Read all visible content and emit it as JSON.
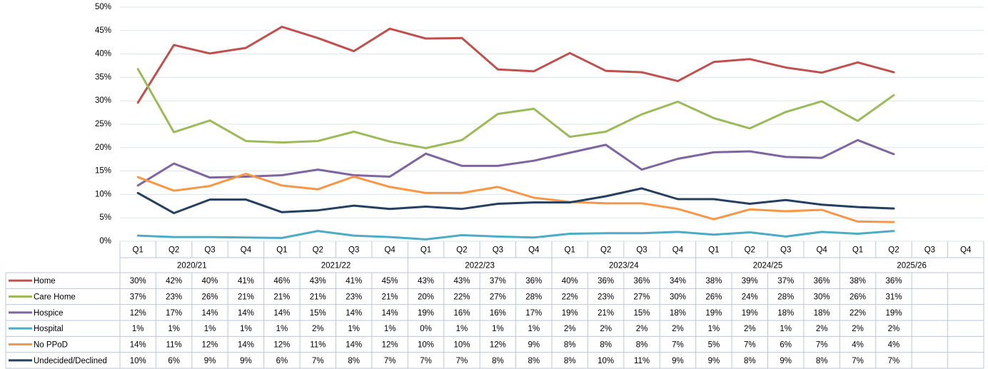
{
  "chart_data": {
    "type": "line",
    "categories": [
      "Q1",
      "Q2",
      "Q3",
      "Q4",
      "Q1",
      "Q2",
      "Q3",
      "Q4",
      "Q1",
      "Q2",
      "Q3",
      "Q4",
      "Q1",
      "Q2",
      "Q3",
      "Q4",
      "Q1",
      "Q2",
      "Q3",
      "Q4",
      "Q1",
      "Q2",
      "Q3",
      "Q4"
    ],
    "category_groups": [
      "2020/21",
      "2021/22",
      "2022/23",
      "2023/24",
      "2024/25",
      "2025/26"
    ],
    "ylim": [
      0,
      50
    ],
    "yticks": [
      {
        "value": 0,
        "label": "0%"
      },
      {
        "value": 5,
        "label": "5%"
      },
      {
        "value": 10,
        "label": "10%"
      },
      {
        "value": 15,
        "label": "15%"
      },
      {
        "value": 20,
        "label": "20%"
      },
      {
        "value": 25,
        "label": "25%"
      },
      {
        "value": 30,
        "label": "30%"
      },
      {
        "value": 35,
        "label": "35%"
      },
      {
        "value": 40,
        "label": "40%"
      },
      {
        "value": 45,
        "label": "45%"
      },
      {
        "value": 50,
        "label": "50%"
      }
    ],
    "grid": true,
    "series": [
      {
        "name": "Home",
        "color": "#c0504d",
        "values": [
          29.6,
          41.9,
          40.1,
          41.3,
          45.8,
          43.4,
          40.6,
          45.4,
          43.3,
          43.4,
          36.7,
          36.3,
          40.2,
          36.4,
          36.1,
          34.2,
          38.3,
          38.9,
          37.1,
          36.0,
          38.2,
          36.1,
          null,
          null
        ],
        "value_labels": [
          "30%",
          "42%",
          "40%",
          "41%",
          "46%",
          "43%",
          "41%",
          "45%",
          "43%",
          "43%",
          "37%",
          "36%",
          "40%",
          "36%",
          "36%",
          "34%",
          "38%",
          "39%",
          "37%",
          "36%",
          "38%",
          "36%",
          null,
          null
        ]
      },
      {
        "name": "Care Home",
        "color": "#9bbb59",
        "values": [
          36.8,
          23.3,
          25.8,
          21.4,
          21.1,
          21.4,
          23.4,
          21.3,
          19.9,
          21.6,
          27.2,
          28.3,
          22.3,
          23.4,
          27.1,
          29.8,
          26.3,
          24.1,
          27.6,
          29.9,
          25.7,
          31.2,
          null,
          null
        ],
        "value_labels": [
          "37%",
          "23%",
          "26%",
          "21%",
          "21%",
          "21%",
          "23%",
          "21%",
          "20%",
          "22%",
          "27%",
          "28%",
          "22%",
          "23%",
          "27%",
          "30%",
          "26%",
          "24%",
          "28%",
          "30%",
          "26%",
          "31%",
          null,
          null
        ]
      },
      {
        "name": "Hospice",
        "color": "#8064a2",
        "values": [
          11.9,
          16.6,
          13.6,
          13.8,
          14.1,
          15.3,
          14.1,
          13.8,
          18.7,
          16.1,
          16.1,
          17.2,
          18.9,
          20.6,
          15.3,
          17.6,
          19.0,
          19.2,
          18.0,
          17.8,
          21.6,
          18.6,
          null,
          null
        ],
        "value_labels": [
          "12%",
          "17%",
          "14%",
          "14%",
          "14%",
          "15%",
          "14%",
          "14%",
          "19%",
          "16%",
          "16%",
          "17%",
          "19%",
          "21%",
          "15%",
          "18%",
          "19%",
          "19%",
          "18%",
          "18%",
          "22%",
          "19%",
          null,
          null
        ]
      },
      {
        "name": "Hospital",
        "color": "#4bacc6",
        "values": [
          1.2,
          0.9,
          0.9,
          0.8,
          0.7,
          2.2,
          1.2,
          0.9,
          0.4,
          1.3,
          1.0,
          0.8,
          1.6,
          1.7,
          1.7,
          2.0,
          1.4,
          1.9,
          1.0,
          2.0,
          1.6,
          2.2,
          null,
          null
        ],
        "value_labels": [
          "1%",
          "1%",
          "1%",
          "1%",
          "1%",
          "2%",
          "1%",
          "1%",
          "0%",
          "1%",
          "1%",
          "1%",
          "2%",
          "2%",
          "2%",
          "2%",
          "1%",
          "2%",
          "1%",
          "2%",
          "2%",
          "2%",
          null,
          null
        ]
      },
      {
        "name": "No PPoD",
        "color": "#f79646",
        "values": [
          13.7,
          10.8,
          11.8,
          14.4,
          11.9,
          11.1,
          13.8,
          11.6,
          10.3,
          10.3,
          11.6,
          9.3,
          8.4,
          8.1,
          8.1,
          6.9,
          4.7,
          6.8,
          6.4,
          6.7,
          4.2,
          4.1,
          null,
          null
        ],
        "value_labels": [
          "14%",
          "11%",
          "12%",
          "14%",
          "12%",
          "11%",
          "14%",
          "12%",
          "10%",
          "10%",
          "12%",
          "9%",
          "8%",
          "8%",
          "8%",
          "7%",
          "5%",
          "7%",
          "6%",
          "7%",
          "4%",
          "4%",
          null,
          null
        ]
      },
      {
        "name": "Undecided/Declined",
        "color": "#243f60",
        "values": [
          10.3,
          6.0,
          8.9,
          8.9,
          6.2,
          6.6,
          7.6,
          6.9,
          7.4,
          6.9,
          8.0,
          8.3,
          8.3,
          9.6,
          11.3,
          9.0,
          9.0,
          8.0,
          8.8,
          7.8,
          7.3,
          7.0,
          null,
          null
        ],
        "value_labels": [
          "10%",
          "6%",
          "9%",
          "9%",
          "6%",
          "7%",
          "8%",
          "7%",
          "7%",
          "7%",
          "8%",
          "8%",
          "8%",
          "10%",
          "11%",
          "9%",
          "9%",
          "8%",
          "9%",
          "8%",
          "7%",
          "7%",
          null,
          null
        ]
      }
    ]
  }
}
